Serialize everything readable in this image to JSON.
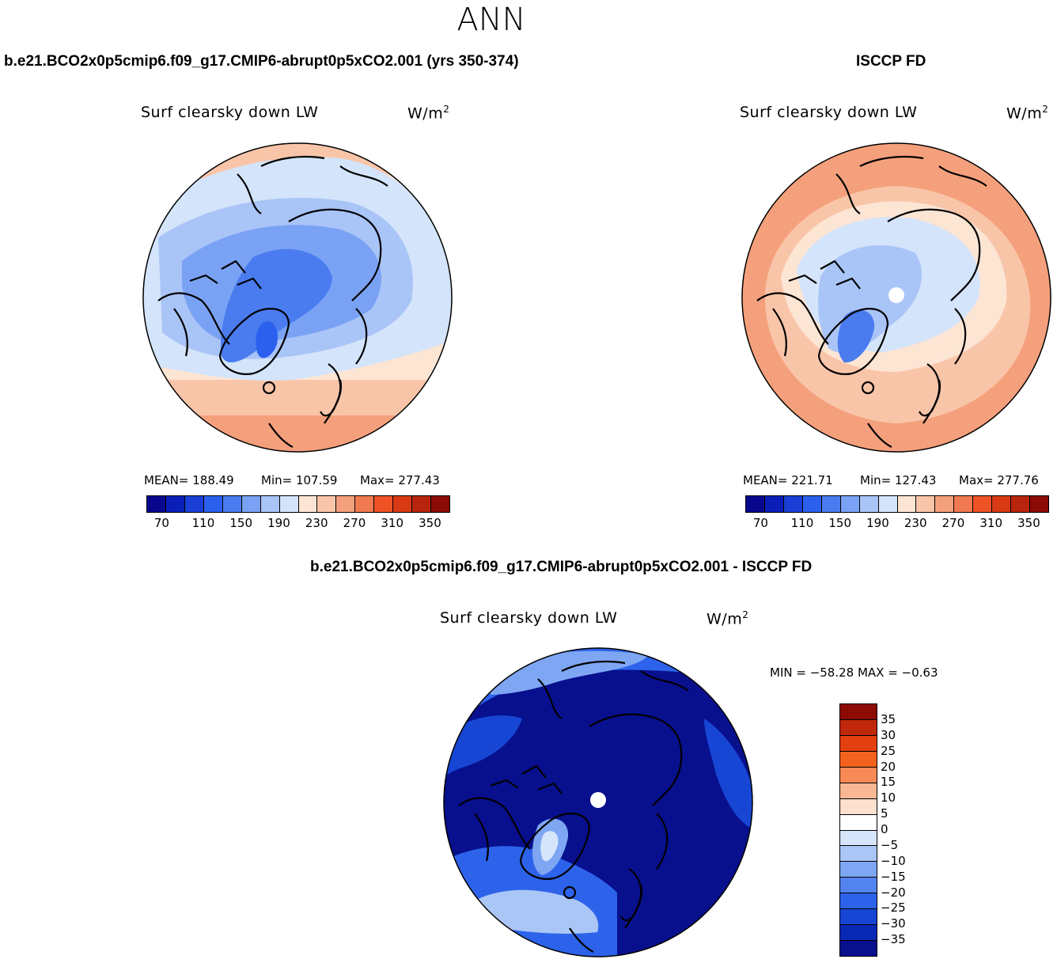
{
  "main_title": "ANN",
  "panel_left": {
    "title": "b.e21.BCO2x0p5cmip6.f09_g17.CMIP6-abrupt0p5xCO2.001 (yrs 350-374)",
    "variable": "Surf clearsky down LW",
    "units_base": "W/m",
    "units_exp": "2",
    "mean_label": "MEAN= 188.49",
    "min_label": "Min= 107.59",
    "max_label": "Max= 277.43"
  },
  "panel_right": {
    "title": "ISCCP FD",
    "variable": "Surf clearsky down LW",
    "units_base": "W/m",
    "units_exp": "2",
    "mean_label": "MEAN= 221.71",
    "min_label": "Min= 127.43",
    "max_label": "Max= 277.76"
  },
  "panel_diff": {
    "title": "b.e21.BCO2x0p5cmip6.f09_g17.CMIP6-abrupt0p5xCO2.001 - ISCCP FD",
    "variable": "Surf clearsky down LW",
    "units_base": "W/m",
    "units_exp": "2",
    "minmax_label": "MIN = −58.28 MAX =  −0.63"
  },
  "colorbar_abs": {
    "colors": [
      "#08088e",
      "#0a1fb8",
      "#1a3fd6",
      "#2b60ee",
      "#4a7cf0",
      "#7aa2f4",
      "#a9c4f7",
      "#d4e4fa",
      "#fde5d4",
      "#f9c5a9",
      "#f5a07c",
      "#f27a52",
      "#ee5225",
      "#d93a14",
      "#b8250c",
      "#8c0b04"
    ],
    "tick_labels": [
      "70",
      "110",
      "150",
      "190",
      "230",
      "270",
      "310",
      "350"
    ]
  },
  "colorbar_diff": {
    "colors": [
      "#8c0b04",
      "#c0280c",
      "#e2400f",
      "#f3621f",
      "#f78a57",
      "#fab795",
      "#fde0cd",
      "#ffffff",
      "#d6e5fa",
      "#aac6f6",
      "#7ea6f3",
      "#5383ef",
      "#2d63ea",
      "#1746d4",
      "#0a28b6",
      "#08108e"
    ],
    "tick_labels": [
      "35",
      "30",
      "25",
      "20",
      "15",
      "10",
      "5",
      "0",
      "−5",
      "−10",
      "−15",
      "−20",
      "−25",
      "−30",
      "−35"
    ]
  }
}
